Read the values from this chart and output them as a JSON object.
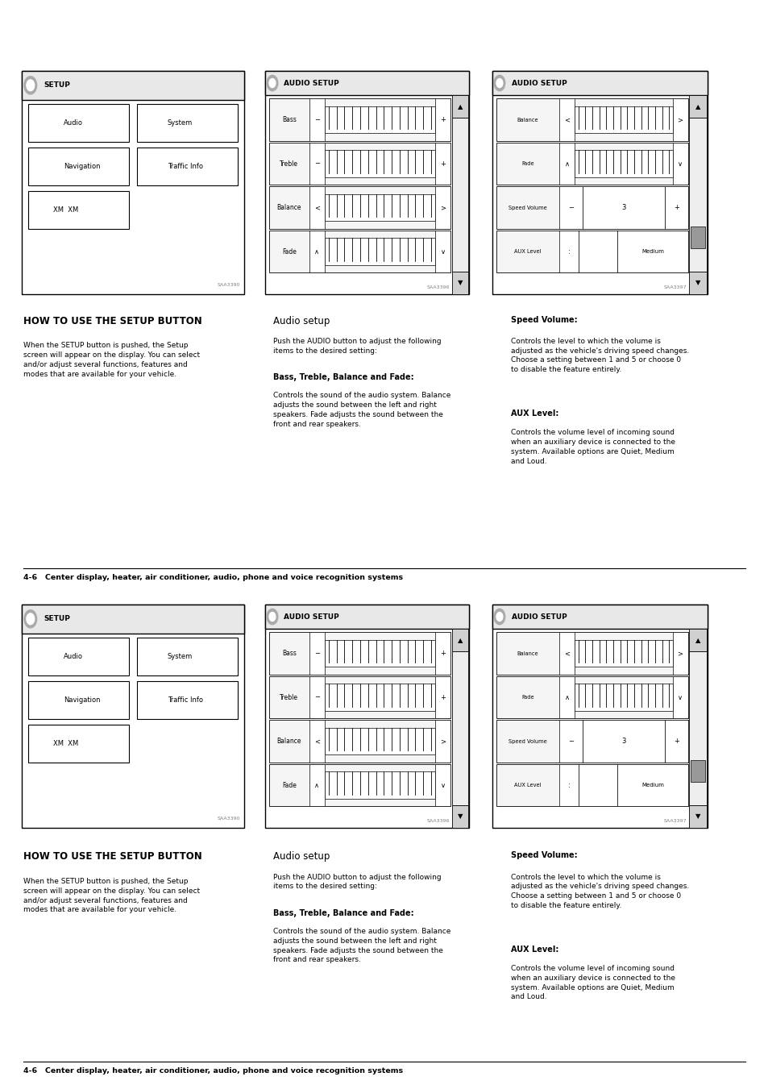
{
  "bg_color": "#ffffff",
  "text_color": "#000000",
  "footer_text": "4-6   Center display, heater, air conditioner, audio, phone and voice recognition systems",
  "col1_title": "HOW TO USE THE SETUP BUTTON",
  "col1_body": "When the SETUP button is pushed, the Setup\nscreen will appear on the display. You can select\nand/or adjust several functions, features and\nmodes that are available for your vehicle.",
  "col2_title": "Audio setup",
  "col2_body1": "Push the AUDIO button to adjust the following\nitems to the desired setting:",
  "col2_body2_bold": "Bass, Treble, Balance and Fade:",
  "col2_body2": "Controls the sound of the audio system. Balance\nadjusts the sound between the left and right\nspeakers. Fade adjusts the sound between the\nfront and rear speakers.",
  "col3_speed_bold": "Speed Volume:",
  "col3_speed_body": "Controls the level to which the volume is\nadjusted as the vehicle's driving speed changes.\nChoose a setting between 1 and 5 or choose 0\nto disable the feature entirely.",
  "col3_aux_bold": "AUX Level:",
  "col3_aux_body": "Controls the volume level of incoming sound\nwhen an auxiliary device is connected to the\nsystem. Available options are Quiet, Medium\nand Loud.",
  "saa3390": "SAA3390",
  "saa3396": "SAA3396",
  "saa3397": "SAA3397"
}
